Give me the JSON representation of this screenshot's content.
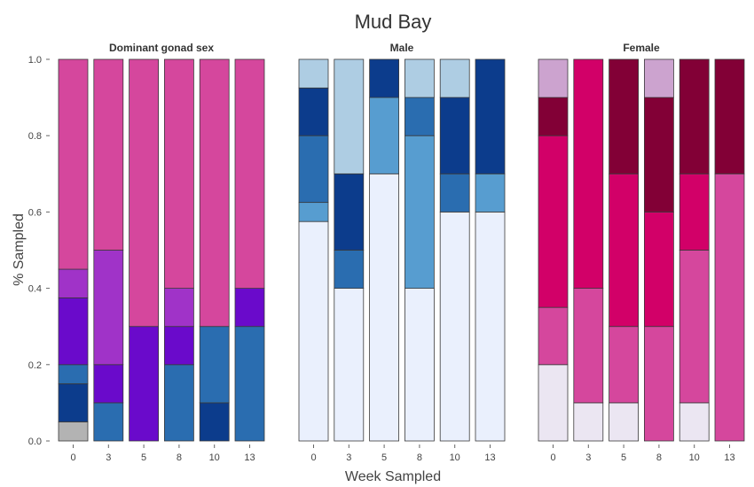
{
  "chart_data": {
    "type": "bar",
    "stacked": true,
    "title": "Mud Bay",
    "xlabel": "Week Sampled",
    "ylabel": "% Sampled",
    "ylim": [
      0,
      1.0
    ],
    "yticks": [
      "0.0",
      "0.2",
      "0.4",
      "0.6",
      "0.8",
      "1.0"
    ],
    "grid": false,
    "categories": [
      "0",
      "3",
      "5",
      "8",
      "10",
      "13"
    ],
    "panels": [
      {
        "title": "Dominant gonad sex",
        "series": [
          {
            "color": "#B3B3B3",
            "values": [
              0.05,
              0,
              0,
              0,
              0,
              0
            ]
          },
          {
            "color": "#0C3C8C",
            "values": [
              0.1,
              0,
              0,
              0,
              0.1,
              0
            ]
          },
          {
            "color": "#2A6DB0",
            "values": [
              0.05,
              0.1,
              0,
              0.2,
              0.2,
              0.3
            ]
          },
          {
            "color": "#6A0ACB",
            "values": [
              0.175,
              0.1,
              0.3,
              0.1,
              0,
              0.1
            ]
          },
          {
            "color": "#A033C8",
            "values": [
              0.075,
              0.3,
              0,
              0.1,
              0,
              0
            ]
          },
          {
            "color": "#D5479D",
            "values": [
              0.55,
              0.5,
              0.7,
              0.6,
              0.7,
              0.6
            ]
          }
        ]
      },
      {
        "title": "Male",
        "series": [
          {
            "color": "#EAF0FD",
            "values": [
              0.575,
              0.4,
              0.7,
              0.4,
              0.6,
              0.6
            ]
          },
          {
            "color": "#579DD0",
            "values": [
              0.05,
              0,
              0.2,
              0.4,
              0,
              0.1
            ]
          },
          {
            "color": "#2A6DB0",
            "values": [
              0.175,
              0.1,
              0,
              0.1,
              0.1,
              0
            ]
          },
          {
            "color": "#0C3C8C",
            "values": [
              0.125,
              0.2,
              0.1,
              0,
              0.2,
              0.3
            ]
          },
          {
            "color": "#AECDE3",
            "values": [
              0.075,
              0.3,
              0,
              0.1,
              0.1,
              0
            ]
          }
        ]
      },
      {
        "title": "Female",
        "series": [
          {
            "color": "#EBE6F2",
            "values": [
              0.2,
              0.1,
              0.1,
              0,
              0.1,
              0
            ]
          },
          {
            "color": "#D5479D",
            "values": [
              0.15,
              0.3,
              0.2,
              0.3,
              0.4,
              0.7
            ]
          },
          {
            "color": "#D20068",
            "values": [
              0.45,
              0.6,
              0.4,
              0.3,
              0.2,
              0
            ]
          },
          {
            "color": "#820036",
            "values": [
              0.1,
              0,
              0.3,
              0.3,
              0.3,
              0.3
            ]
          },
          {
            "color": "#CCA3CF",
            "values": [
              0.1,
              0,
              0,
              0.1,
              0,
              0
            ]
          }
        ]
      }
    ]
  }
}
